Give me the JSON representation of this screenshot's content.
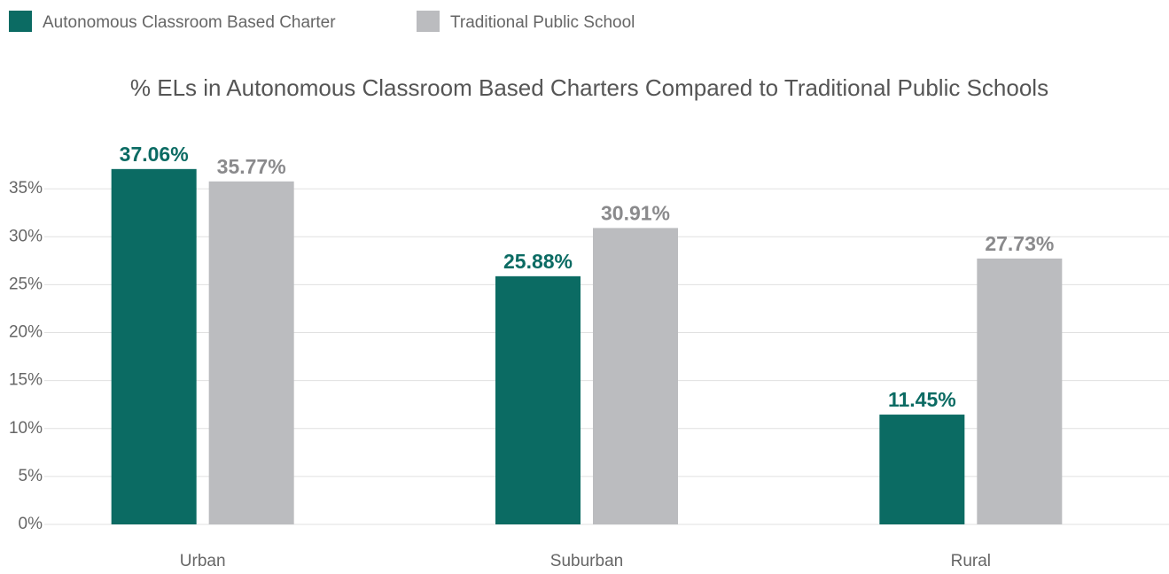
{
  "chart_data": {
    "type": "bar",
    "title": "% ELs in Autonomous Classroom Based Charters Compared to Traditional Public Schools",
    "categories": [
      "Urban",
      "Suburban",
      "Rural"
    ],
    "series": [
      {
        "name": "Autonomous Classroom Based Charter",
        "color": "#0b6b63",
        "values": [
          37.06,
          25.88,
          11.45
        ],
        "value_labels": [
          "37.06%",
          "25.88%",
          "11.45%"
        ]
      },
      {
        "name": "Traditional Public School",
        "color": "#bbbcbf",
        "values": [
          35.77,
          30.91,
          27.73
        ],
        "value_labels": [
          "35.77%",
          "30.91%",
          "27.73%"
        ]
      }
    ],
    "ylim": [
      0,
      40
    ],
    "yticks": [
      {
        "value": 0,
        "label": "0%"
      },
      {
        "value": 5,
        "label": "5%"
      },
      {
        "value": 10,
        "label": "10%"
      },
      {
        "value": 15,
        "label": "15%"
      },
      {
        "value": 20,
        "label": "20%"
      },
      {
        "value": 25,
        "label": "25%"
      },
      {
        "value": 30,
        "label": "30%"
      },
      {
        "value": 35,
        "label": "35%"
      }
    ],
    "grid": true,
    "legend": "top-left"
  }
}
